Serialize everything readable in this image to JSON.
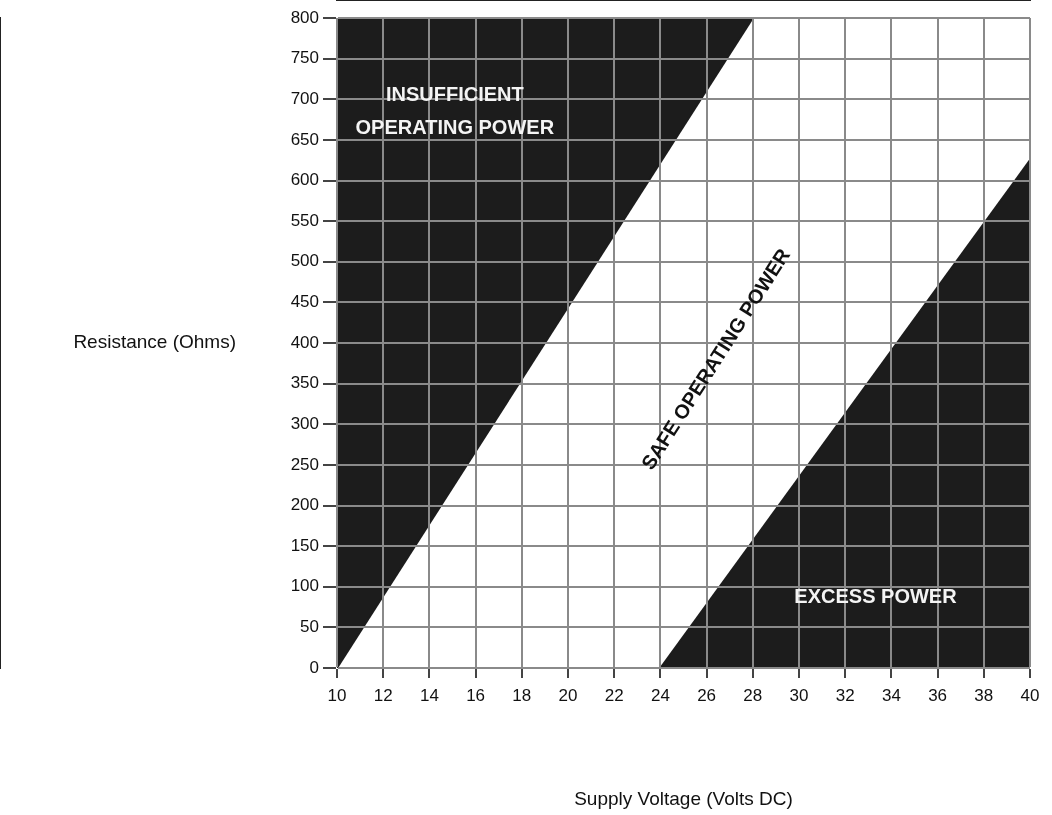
{
  "chart_data": {
    "type": "area",
    "xlabel": "Supply Voltage (Volts DC)",
    "ylabel": "Resistance (Ohms)",
    "xlim": [
      10,
      40
    ],
    "xticks": [
      10,
      12,
      14,
      16,
      18,
      20,
      22,
      24,
      26,
      28,
      30,
      32,
      34,
      36,
      38,
      40
    ],
    "ylim": [
      0,
      800
    ],
    "yticks": [
      0,
      50,
      100,
      150,
      200,
      250,
      300,
      350,
      400,
      450,
      500,
      550,
      600,
      650,
      700,
      750,
      800
    ],
    "grid": true,
    "legend": false,
    "marker": "none",
    "series": [
      {
        "color": "#1c1c1c",
        "x": [
          10,
          28
        ],
        "values": [
          0,
          800
        ]
      },
      {
        "color": "#1c1c1c",
        "x": [
          24,
          40
        ],
        "values": [
          0,
          625
        ]
      }
    ],
    "annotations": [
      "INSUFFICIENT\nOPERATING POWER",
      "SAFE OPERATING POWER",
      "EXCESS POWER"
    ]
  }
}
